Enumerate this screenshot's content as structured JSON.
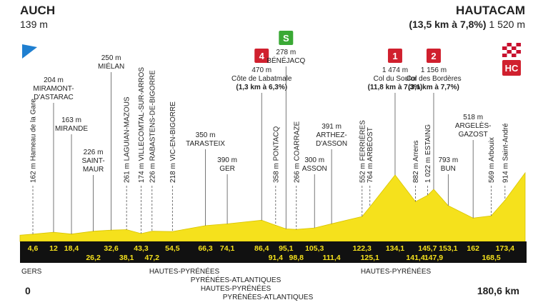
{
  "chart_data": {
    "type": "profile",
    "start": {
      "name": "AUCH",
      "elevation": 139,
      "elevation_label": "139 m",
      "km": 0,
      "km_label": "0"
    },
    "finish": {
      "name": "HAUTACAM",
      "detail": "(13,5 km à 7,8%)",
      "elevation": 1520,
      "elevation_label": "1 520 m",
      "category": "HC",
      "km": 180.6,
      "km_label": "180,6 km"
    },
    "waypoints": [
      {
        "km": 4.6,
        "km_label": "4,6",
        "elevation": 162,
        "elevation_label": "162 m",
        "name": [
          "Hameau de la Gare"
        ],
        "label_style": "vertical"
      },
      {
        "km": 12,
        "km_label": "12",
        "elevation": 204,
        "elevation_label": "204 m",
        "name": [
          "MIRAMONT-",
          "D'ASTARAC"
        ],
        "label_style": "horizontal"
      },
      {
        "km": 18.4,
        "km_label": "18,4",
        "elevation": 163,
        "elevation_label": "163 m",
        "name": [
          "MIRANDE"
        ],
        "label_style": "horizontal"
      },
      {
        "km": 26.2,
        "km_label": "26,2",
        "elevation": 226,
        "elevation_label": "226 m",
        "name": [
          "SAINT-",
          "MAUR"
        ],
        "label_style": "horizontal"
      },
      {
        "km": 32.6,
        "km_label": "32,6",
        "elevation": 250,
        "elevation_label": "250 m",
        "name": [
          "MIÉLAN"
        ],
        "label_style": "horizontal"
      },
      {
        "km": 38.1,
        "km_label": "38,1",
        "elevation": 261,
        "elevation_label": "261 m",
        "name": [
          "LAGUIAN-MAZOUS"
        ],
        "label_style": "vertical"
      },
      {
        "km": 43.3,
        "km_label": "43,3",
        "elevation": 174,
        "elevation_label": "174 m",
        "name": [
          "VILLECOMTAL-SUR-ARROS"
        ],
        "label_style": "vertical"
      },
      {
        "km": 47.2,
        "km_label": "47,2",
        "elevation": 226,
        "elevation_label": "226 m",
        "name": [
          "RABASTENS-DE-BIGORRE"
        ],
        "label_style": "vertical"
      },
      {
        "km": 54.5,
        "km_label": "54,5",
        "elevation": 218,
        "elevation_label": "218 m",
        "name": [
          "VIC-EN-BIGORRE"
        ],
        "label_style": "vertical"
      },
      {
        "km": 66.3,
        "km_label": "66,3",
        "elevation": 350,
        "elevation_label": "350 m",
        "name": [
          "TARASTEIX"
        ],
        "label_style": "horizontal"
      },
      {
        "km": 74.1,
        "km_label": "74,1",
        "elevation": 390,
        "elevation_label": "390 m",
        "name": [
          "GER"
        ],
        "label_style": "horizontal"
      },
      {
        "km": 86.4,
        "km_label": "86,4",
        "elevation": 470,
        "elevation_label": "470 m",
        "name": [
          "Côte de Labatmale"
        ],
        "detail": "(1,3 km à 6,3%)",
        "category": "4",
        "label_style": "horizontal"
      },
      {
        "km": 91.4,
        "km_label": "91,4",
        "elevation": 358,
        "elevation_label": "358 m",
        "name": [
          "PONTACQ"
        ],
        "label_style": "vertical"
      },
      {
        "km": 95.1,
        "km_label": "95,1",
        "elevation": 278,
        "elevation_label": "278 m",
        "name": [
          "BÉNÉJACQ"
        ],
        "category": "S",
        "label_style": "horizontal"
      },
      {
        "km": 98.8,
        "km_label": "98,8",
        "elevation": 266,
        "elevation_label": "266 m",
        "name": [
          "COARRAZE"
        ],
        "label_style": "vertical"
      },
      {
        "km": 105.3,
        "km_label": "105,3",
        "elevation": 300,
        "elevation_label": "300 m",
        "name": [
          "ASSON"
        ],
        "label_style": "horizontal"
      },
      {
        "km": 111.4,
        "km_label": "111,4",
        "elevation": 391,
        "elevation_label": "391 m",
        "name": [
          "ARTHEZ-",
          "D'ASSON"
        ],
        "label_style": "horizontal"
      },
      {
        "km": 122.3,
        "km_label": "122,3",
        "elevation": 552,
        "elevation_label": "552 m",
        "name": [
          "FERRIÈRES"
        ],
        "label_style": "vertical"
      },
      {
        "km": 125.1,
        "km_label": "125,1",
        "elevation": 764,
        "elevation_label": "764 m",
        "name": [
          "ARBÉOST"
        ],
        "label_style": "vertical"
      },
      {
        "km": 134.1,
        "km_label": "134,1",
        "elevation": 1474,
        "elevation_label": "1 474 m",
        "name": [
          "Col du Soulor"
        ],
        "detail": "(11,8 km à 7,3%)",
        "category": "1",
        "label_style": "horizontal"
      },
      {
        "km": 141.4,
        "km_label": "141,4",
        "elevation": 882,
        "elevation_label": "882 m",
        "name": [
          "Arrens"
        ],
        "label_style": "vertical"
      },
      {
        "km": 145.7,
        "km_label": "145,7",
        "elevation": 1022,
        "elevation_label": "1 022 m",
        "name": [
          "ESTAING"
        ],
        "label_style": "vertical"
      },
      {
        "km": 147.9,
        "km_label": "147,9",
        "elevation": 1156,
        "elevation_label": "1 156 m",
        "name": [
          "Col des Bordères"
        ],
        "detail": "(3,1 km à 7,7%)",
        "category": "2",
        "label_style": "horizontal"
      },
      {
        "km": 153.1,
        "km_label": "153,1",
        "elevation": 793,
        "elevation_label": "793 m",
        "name": [
          "BUN"
        ],
        "label_style": "horizontal"
      },
      {
        "km": 162,
        "km_label": "162",
        "elevation": 518,
        "elevation_label": "518 m",
        "name": [
          "ARGELÈS-",
          "GAZOST"
        ],
        "label_style": "horizontal"
      },
      {
        "km": 168.5,
        "km_label": "168,5",
        "elevation": 569,
        "elevation_label": "569 m",
        "name": [
          "Arbouix"
        ],
        "label_style": "vertical"
      },
      {
        "km": 173.4,
        "km_label": "173,4",
        "elevation": 914,
        "elevation_label": "914 m",
        "name": [
          "Saint-André"
        ],
        "label_style": "vertical"
      }
    ],
    "regions": [
      "GERS",
      "HAUTES-PYRÉNÉES",
      "PYRÉNÉES-ATLANTIQUES",
      "HAUTES-PYRÉNÉES",
      "PYRÉNÉES-ATLANTIQUES",
      "HAUTES-PYRÉNÉES"
    ],
    "profile_color": "#f5e11c",
    "band_color": "#111111",
    "km_label_color": "#f5e11c"
  }
}
